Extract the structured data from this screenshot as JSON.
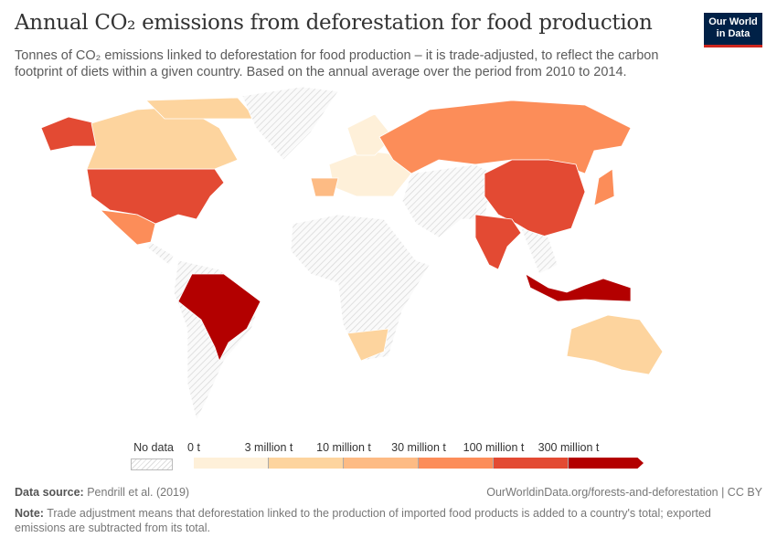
{
  "header": {
    "title": "Annual CO₂ emissions from deforestation for food production",
    "subtitle": "Tonnes of CO₂ emissions linked to deforestation for food production – it is trade-adjusted, to reflect the carbon footprint of diets within a given country. Based on the annual average over the period from 2010 to 2014.",
    "logo": "Our World in Data"
  },
  "legend": {
    "no_data_label": "No data",
    "tick_labels": [
      "0 t",
      "3 million t",
      "10 million t",
      "30 million t",
      "100 million t",
      "300 million t"
    ],
    "bin_colors": [
      "#fef0d9",
      "#fdd49e",
      "#fdbb84",
      "#fc8d59",
      "#e34a33",
      "#b30000"
    ],
    "no_data_color": "#eeeeee"
  },
  "map_data": {
    "regions": [
      {
        "id": "usa",
        "bin": 4
      },
      {
        "id": "alaska",
        "bin": 4
      },
      {
        "id": "canada",
        "bin": 1
      },
      {
        "id": "canada-arctic",
        "bin": 1
      },
      {
        "id": "greenland",
        "bin": null
      },
      {
        "id": "mexico",
        "bin": 3
      },
      {
        "id": "central-america",
        "bin": null
      },
      {
        "id": "south-america",
        "bin": null
      },
      {
        "id": "brazil",
        "bin": 5
      },
      {
        "id": "africa",
        "bin": null
      },
      {
        "id": "south-africa",
        "bin": 1
      },
      {
        "id": "europe",
        "bin": 0
      },
      {
        "id": "scandinavia",
        "bin": 0
      },
      {
        "id": "spain",
        "bin": 2
      },
      {
        "id": "russia",
        "bin": 3
      },
      {
        "id": "middle-east-central-asia",
        "bin": null
      },
      {
        "id": "china",
        "bin": 4
      },
      {
        "id": "india",
        "bin": 4
      },
      {
        "id": "southeast-asia",
        "bin": null
      },
      {
        "id": "indonesia",
        "bin": 5
      },
      {
        "id": "japan",
        "bin": 3
      },
      {
        "id": "australia",
        "bin": 1
      }
    ]
  },
  "footer": {
    "source_label": "Data source:",
    "source": "Pendrill et al. (2019)",
    "url": "OurWorldinData.org/forests-and-deforestation | CC BY",
    "note_label": "Note:",
    "note": "Trade adjustment means that deforestation linked to the production of imported food products is added to a country's total; exported emissions are subtracted from its total."
  }
}
